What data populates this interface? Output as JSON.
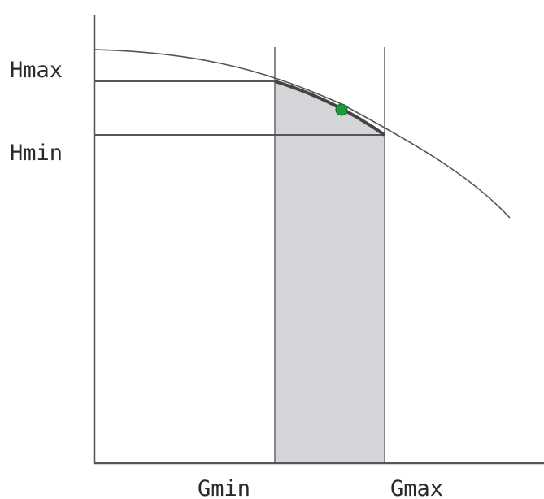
{
  "labels": {
    "h_max": "Hmax",
    "h_min": "Hmin",
    "g_min": "Gmin",
    "g_max": "Gmax"
  },
  "colors": {
    "axis": "#555555",
    "curve": "#555555",
    "operating_range_curve": "#444444",
    "reference_lines": "#555555",
    "bounds": "#888888",
    "operating_region_fill": "#d3d5d9",
    "operating_point": "#1a9a3a"
  }
}
